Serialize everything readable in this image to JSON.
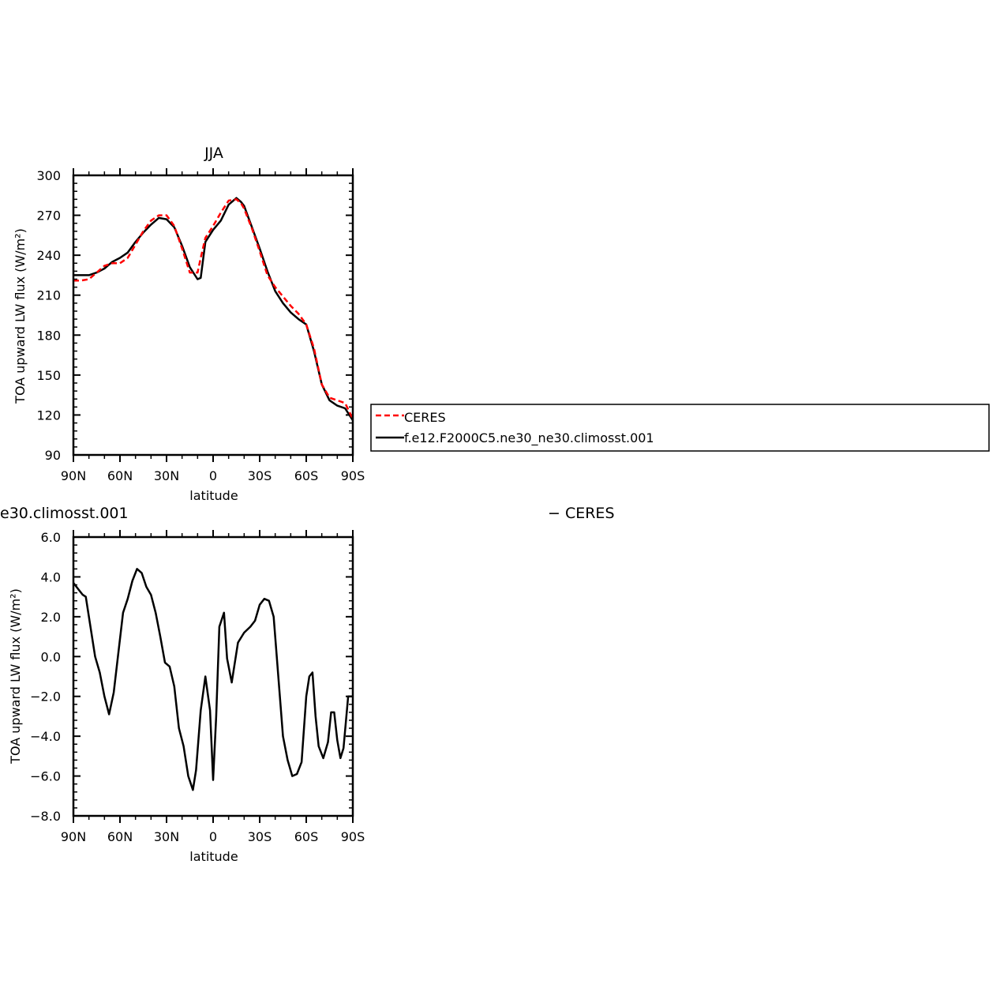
{
  "chart_data": [
    {
      "type": "line",
      "title": "JJA",
      "xlabel": "latitude",
      "ylabel": "TOA upward LW flux (W/m²)",
      "xlim": [
        90,
        -90
      ],
      "ylim": [
        90,
        300
      ],
      "xticks": [
        {
          "value": 90,
          "label": "90N"
        },
        {
          "value": 60,
          "label": "60N"
        },
        {
          "value": 30,
          "label": "30N"
        },
        {
          "value": 0,
          "label": "0"
        },
        {
          "value": -30,
          "label": "30S"
        },
        {
          "value": -60,
          "label": "60S"
        },
        {
          "value": -90,
          "label": "90S"
        }
      ],
      "yticks": [
        {
          "value": 300,
          "label": "300"
        },
        {
          "value": 270,
          "label": "270"
        },
        {
          "value": 240,
          "label": "240"
        },
        {
          "value": 210,
          "label": "210"
        },
        {
          "value": 180,
          "label": "180"
        },
        {
          "value": 150,
          "label": "150"
        },
        {
          "value": 120,
          "label": "120"
        },
        {
          "value": 90,
          "label": "90"
        }
      ],
      "series": [
        {
          "name": "CERES",
          "color": "#ff0000",
          "dash": "dashed",
          "x": [
            90,
            85,
            80,
            75,
            70,
            65,
            60,
            55,
            50,
            45,
            40,
            35,
            30,
            25,
            20,
            15,
            10,
            8,
            5,
            0,
            -5,
            -10,
            -15,
            -18,
            -20,
            -25,
            -30,
            -35,
            -40,
            -45,
            -50,
            -55,
            -60,
            -65,
            -70,
            -75,
            -80,
            -85,
            -90
          ],
          "y": [
            221,
            221,
            222,
            227,
            232,
            234,
            234,
            238,
            248,
            258,
            266,
            270,
            270,
            262,
            245,
            227,
            227,
            238,
            253,
            262,
            272,
            281,
            282,
            279,
            275,
            260,
            243,
            225,
            216,
            209,
            202,
            196,
            188,
            170,
            143,
            133,
            131,
            129,
            117
          ]
        },
        {
          "name": "f.e12.F2000C5.ne30_ne30.climosst.001",
          "color": "#000000",
          "dash": "solid",
          "x": [
            90,
            85,
            80,
            75,
            70,
            65,
            60,
            55,
            50,
            45,
            40,
            35,
            30,
            25,
            20,
            15,
            10,
            8,
            5,
            0,
            -5,
            -10,
            -15,
            -18,
            -20,
            -25,
            -30,
            -35,
            -40,
            -45,
            -50,
            -55,
            -60,
            -65,
            -70,
            -75,
            -80,
            -85,
            -90
          ],
          "y": [
            225,
            225,
            225,
            227,
            230,
            235,
            238,
            242,
            250,
            257,
            263,
            268,
            267,
            261,
            247,
            231,
            222,
            223,
            250,
            259,
            266,
            278,
            283,
            280,
            277,
            261,
            245,
            228,
            213,
            204,
            197,
            192,
            188,
            168,
            143,
            131,
            127,
            125,
            116
          ]
        }
      ],
      "legend": "right"
    },
    {
      "type": "line",
      "title_left": "e30.climosst.001",
      "title_right": "− CERES",
      "xlabel": "latitude",
      "ylabel": "TOA upward LW flux (W/m²)",
      "xlim": [
        90,
        -90
      ],
      "ylim": [
        -8,
        6
      ],
      "xticks": [
        {
          "value": 90,
          "label": "90N"
        },
        {
          "value": 60,
          "label": "60N"
        },
        {
          "value": 30,
          "label": "30N"
        },
        {
          "value": 0,
          "label": "0"
        },
        {
          "value": -30,
          "label": "30S"
        },
        {
          "value": -60,
          "label": "60S"
        },
        {
          "value": -90,
          "label": "90S"
        }
      ],
      "yticks": [
        {
          "value": 6,
          "label": "6.0"
        },
        {
          "value": 4,
          "label": "4.0"
        },
        {
          "value": 2,
          "label": "2.0"
        },
        {
          "value": 0,
          "label": "0.0"
        },
        {
          "value": -2,
          "label": "−2.0"
        },
        {
          "value": -4,
          "label": "−4.0"
        },
        {
          "value": -6,
          "label": "−6.0"
        },
        {
          "value": -8,
          "label": "−8.0"
        }
      ],
      "series": [
        {
          "color": "#000000",
          "x": [
            90,
            87,
            84,
            82,
            79,
            76,
            73,
            70,
            67,
            64,
            61,
            58,
            55,
            52,
            49,
            46,
            43,
            40,
            37,
            34,
            31,
            28,
            25,
            22,
            19,
            16,
            13,
            11,
            8,
            5,
            2,
            0,
            -2,
            -4,
            -7,
            -9,
            -12,
            -16,
            -20,
            -24,
            -27,
            -30,
            -33,
            -36,
            -39,
            -42,
            -45,
            -48,
            -51,
            -54,
            -57,
            -60,
            -62,
            -64,
            -66,
            -68,
            -71,
            -74,
            -76,
            -78,
            -80,
            -82,
            -84,
            -87,
            -90
          ],
          "y": [
            3.7,
            3.4,
            3.1,
            3.0,
            1.5,
            0.0,
            -0.8,
            -2.0,
            -2.9,
            -1.8,
            0.2,
            2.2,
            2.9,
            3.8,
            4.4,
            4.2,
            3.5,
            3.1,
            2.2,
            1.0,
            -0.3,
            -0.5,
            -1.5,
            -3.6,
            -4.5,
            -6.0,
            -6.7,
            -5.7,
            -2.7,
            -1.0,
            -2.7,
            -6.2,
            -3.0,
            1.5,
            2.2,
            -0.1,
            -1.3,
            0.7,
            1.2,
            1.5,
            1.8,
            2.6,
            2.9,
            2.8,
            2.0,
            -1.0,
            -4.0,
            -5.2,
            -6.0,
            -5.9,
            -5.3,
            -2.0,
            -1.0,
            -0.8,
            -3.0,
            -4.5,
            -5.1,
            -4.3,
            -2.8,
            -2.8,
            -4.2,
            -5.1,
            -4.6,
            -2.0,
            -2.0
          ]
        }
      ]
    }
  ]
}
